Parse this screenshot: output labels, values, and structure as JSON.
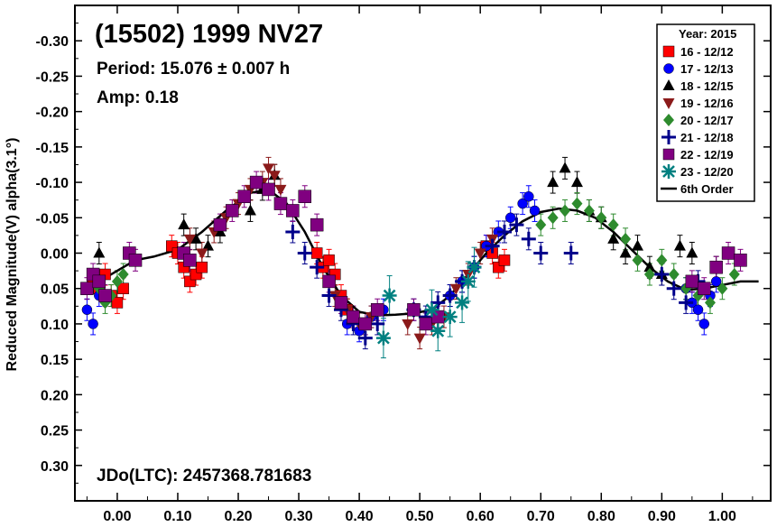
{
  "chart_data": {
    "type": "scatter",
    "title": "(15502) 1999 NV27",
    "period_text": "Period: 15.076 ± 0.007 h",
    "amp_text": "Amp: 0.18",
    "jdo_text": "JDo(LTC): 2457368.781683",
    "ylabel": "Reduced Magnitude(V) alpha(3.1°)",
    "xlabel": "",
    "xlim": [
      -0.07,
      1.08
    ],
    "ylim": [
      -0.35,
      0.35
    ],
    "y_inverted": true,
    "x_ticks": [
      "0.00",
      "0.10",
      "0.20",
      "0.30",
      "0.40",
      "0.50",
      "0.60",
      "0.70",
      "0.80",
      "0.90",
      "1.00"
    ],
    "y_ticks": [
      "-0.30",
      "-0.25",
      "-0.20",
      "-0.15",
      "-0.10",
      "-0.05",
      "0.00",
      "0.05",
      "0.10",
      "0.15",
      "0.20",
      "0.25",
      "0.30"
    ],
    "legend": {
      "title": "Year: 2015",
      "position": "top-right"
    },
    "series": [
      {
        "name": "16 - 12/12",
        "marker": "square",
        "color": "#ff0000",
        "points": [
          [
            -0.04,
            0.04
          ],
          [
            -0.03,
            0.05
          ],
          [
            -0.02,
            0.03
          ],
          [
            -0.01,
            0.06
          ],
          [
            0.0,
            0.07
          ],
          [
            0.01,
            0.05
          ],
          [
            0.09,
            -0.01
          ],
          [
            0.1,
            0.0
          ],
          [
            0.11,
            0.02
          ],
          [
            0.12,
            0.04
          ],
          [
            0.13,
            0.03
          ],
          [
            0.14,
            0.02
          ],
          [
            0.33,
            0.0
          ],
          [
            0.34,
            0.02
          ],
          [
            0.35,
            0.01
          ],
          [
            0.36,
            0.03
          ],
          [
            0.37,
            0.06
          ],
          [
            0.38,
            0.08
          ],
          [
            0.61,
            -0.01
          ],
          [
            0.62,
            0.0
          ],
          [
            0.63,
            0.02
          ],
          [
            0.64,
            0.01
          ]
        ]
      },
      {
        "name": "17 - 12/13",
        "marker": "circle",
        "color": "#0000ff",
        "points": [
          [
            -0.05,
            0.08
          ],
          [
            -0.04,
            0.1
          ],
          [
            -0.03,
            0.06
          ],
          [
            0.38,
            0.1
          ],
          [
            0.4,
            0.11
          ],
          [
            0.42,
            0.09
          ],
          [
            0.44,
            0.08
          ],
          [
            0.55,
            0.06
          ],
          [
            0.57,
            0.04
          ],
          [
            0.59,
            0.02
          ],
          [
            0.61,
            -0.01
          ],
          [
            0.63,
            -0.03
          ],
          [
            0.65,
            -0.05
          ],
          [
            0.67,
            -0.07
          ],
          [
            0.68,
            -0.08
          ],
          [
            0.69,
            -0.06
          ],
          [
            0.94,
            0.05
          ],
          [
            0.95,
            0.07
          ],
          [
            0.96,
            0.08
          ],
          [
            0.97,
            0.1
          ],
          [
            0.98,
            0.06
          ],
          [
            0.99,
            0.04
          ]
        ]
      },
      {
        "name": "18 - 12/15",
        "marker": "triangle-up",
        "color": "#000000",
        "points": [
          [
            -0.03,
            0.0
          ],
          [
            0.11,
            -0.04
          ],
          [
            0.13,
            -0.02
          ],
          [
            0.15,
            -0.01
          ],
          [
            0.17,
            -0.03
          ],
          [
            0.22,
            -0.06
          ],
          [
            0.24,
            -0.09
          ],
          [
            0.26,
            -0.11
          ],
          [
            0.72,
            -0.1
          ],
          [
            0.74,
            -0.12
          ],
          [
            0.76,
            -0.1
          ],
          [
            0.78,
            -0.06
          ],
          [
            0.8,
            -0.05
          ],
          [
            0.82,
            -0.02
          ],
          [
            0.84,
            0.0
          ],
          [
            0.86,
            -0.01
          ],
          [
            0.88,
            0.02
          ],
          [
            0.9,
            0.03
          ],
          [
            0.93,
            -0.01
          ],
          [
            0.95,
            0.0
          ],
          [
            0.99,
            0.02
          ]
        ]
      },
      {
        "name": "19 - 12/16",
        "marker": "triangle-down",
        "color": "#8b1a1a",
        "points": [
          [
            0.12,
            -0.02
          ],
          [
            0.14,
            0.0
          ],
          [
            0.16,
            -0.03
          ],
          [
            0.18,
            -0.05
          ],
          [
            0.2,
            -0.07
          ],
          [
            0.22,
            -0.09
          ],
          [
            0.24,
            -0.1
          ],
          [
            0.25,
            -0.12
          ],
          [
            0.26,
            -0.11
          ],
          [
            0.27,
            -0.09
          ],
          [
            0.36,
            0.06
          ],
          [
            0.38,
            0.08
          ],
          [
            0.4,
            0.1
          ],
          [
            0.42,
            0.09
          ],
          [
            0.48,
            0.1
          ],
          [
            0.5,
            0.12
          ],
          [
            0.52,
            0.1
          ],
          [
            0.54,
            0.09
          ],
          [
            0.56,
            0.05
          ],
          [
            0.58,
            0.03
          ],
          [
            0.6,
            0.0
          ],
          [
            0.62,
            -0.02
          ]
        ]
      },
      {
        "name": "20 - 12/17",
        "marker": "diamond",
        "color": "#2e8b2e",
        "points": [
          [
            -0.03,
            0.05
          ],
          [
            -0.02,
            0.07
          ],
          [
            -0.01,
            0.06
          ],
          [
            0.0,
            0.04
          ],
          [
            0.01,
            0.03
          ],
          [
            0.7,
            -0.04
          ],
          [
            0.72,
            -0.05
          ],
          [
            0.74,
            -0.06
          ],
          [
            0.76,
            -0.07
          ],
          [
            0.78,
            -0.06
          ],
          [
            0.8,
            -0.05
          ],
          [
            0.82,
            -0.04
          ],
          [
            0.84,
            -0.02
          ],
          [
            0.86,
            0.01
          ],
          [
            0.88,
            0.03
          ],
          [
            0.9,
            0.01
          ],
          [
            0.92,
            0.03
          ],
          [
            0.94,
            0.05
          ],
          [
            0.96,
            0.06
          ],
          [
            0.98,
            0.07
          ],
          [
            1.0,
            0.05
          ],
          [
            1.02,
            0.03
          ]
        ]
      },
      {
        "name": "21 - 12/18",
        "marker": "plus",
        "color": "#00008b",
        "points": [
          [
            0.29,
            -0.03
          ],
          [
            0.31,
            0.0
          ],
          [
            0.33,
            0.02
          ],
          [
            0.35,
            0.06
          ],
          [
            0.37,
            0.08
          ],
          [
            0.39,
            0.1
          ],
          [
            0.41,
            0.12
          ],
          [
            0.43,
            0.1
          ],
          [
            0.49,
            0.08
          ],
          [
            0.51,
            0.09
          ],
          [
            0.53,
            0.07
          ],
          [
            0.55,
            0.06
          ],
          [
            0.57,
            0.04
          ],
          [
            0.59,
            0.02
          ],
          [
            0.62,
            -0.01
          ],
          [
            0.64,
            -0.03
          ],
          [
            0.66,
            -0.04
          ],
          [
            0.68,
            -0.02
          ],
          [
            0.7,
            0.0
          ],
          [
            0.75,
            0.0
          ],
          [
            0.9,
            0.03
          ],
          [
            0.92,
            0.05
          ],
          [
            0.94,
            0.07
          ],
          [
            0.96,
            0.04
          ]
        ]
      },
      {
        "name": "22 - 12/19",
        "marker": "big-square",
        "color": "#800080",
        "points": [
          [
            -0.05,
            0.05
          ],
          [
            -0.04,
            0.03
          ],
          [
            -0.03,
            0.04
          ],
          [
            -0.02,
            0.06
          ],
          [
            0.02,
            0.0
          ],
          [
            0.03,
            0.01
          ],
          [
            0.11,
            0.0
          ],
          [
            0.12,
            0.01
          ],
          [
            0.17,
            -0.04
          ],
          [
            0.19,
            -0.06
          ],
          [
            0.21,
            -0.08
          ],
          [
            0.23,
            -0.1
          ],
          [
            0.25,
            -0.09
          ],
          [
            0.27,
            -0.07
          ],
          [
            0.29,
            -0.06
          ],
          [
            0.31,
            -0.08
          ],
          [
            0.33,
            -0.04
          ],
          [
            0.35,
            0.04
          ],
          [
            0.37,
            0.07
          ],
          [
            0.39,
            0.09
          ],
          [
            0.41,
            0.1
          ],
          [
            0.43,
            0.08
          ],
          [
            0.49,
            0.08
          ],
          [
            0.51,
            0.1
          ],
          [
            0.53,
            0.09
          ],
          [
            0.95,
            0.04
          ],
          [
            0.97,
            0.05
          ],
          [
            0.99,
            0.02
          ],
          [
            1.01,
            0.0
          ],
          [
            1.03,
            0.01
          ]
        ]
      },
      {
        "name": "23 - 12/20",
        "marker": "asterisk",
        "color": "#008080",
        "points": [
          [
            0.44,
            0.12
          ],
          [
            0.45,
            0.06
          ],
          [
            0.52,
            0.08
          ],
          [
            0.53,
            0.11
          ],
          [
            0.55,
            0.09
          ],
          [
            0.57,
            0.07
          ],
          [
            0.58,
            0.04
          ],
          [
            0.59,
            0.02
          ]
        ]
      },
      {
        "name": "6th Order",
        "marker": "line",
        "color": "#000000",
        "points": [
          [
            -0.06,
            0.045
          ],
          [
            -0.03,
            0.04
          ],
          [
            0.0,
            0.025
          ],
          [
            0.03,
            0.01
          ],
          [
            0.06,
            0.005
          ],
          [
            0.1,
            -0.005
          ],
          [
            0.14,
            -0.03
          ],
          [
            0.18,
            -0.06
          ],
          [
            0.22,
            -0.085
          ],
          [
            0.25,
            -0.09
          ],
          [
            0.28,
            -0.07
          ],
          [
            0.31,
            -0.03
          ],
          [
            0.34,
            0.02
          ],
          [
            0.37,
            0.06
          ],
          [
            0.4,
            0.083
          ],
          [
            0.43,
            0.088
          ],
          [
            0.46,
            0.087
          ],
          [
            0.49,
            0.085
          ],
          [
            0.52,
            0.08
          ],
          [
            0.55,
            0.06
          ],
          [
            0.58,
            0.03
          ],
          [
            0.61,
            0.0
          ],
          [
            0.64,
            -0.025
          ],
          [
            0.67,
            -0.045
          ],
          [
            0.7,
            -0.058
          ],
          [
            0.73,
            -0.063
          ],
          [
            0.76,
            -0.06
          ],
          [
            0.79,
            -0.05
          ],
          [
            0.82,
            -0.03
          ],
          [
            0.85,
            -0.005
          ],
          [
            0.88,
            0.02
          ],
          [
            0.91,
            0.04
          ],
          [
            0.94,
            0.052
          ],
          [
            0.97,
            0.05
          ],
          [
            1.0,
            0.045
          ],
          [
            1.03,
            0.04
          ],
          [
            1.06,
            0.04
          ]
        ]
      }
    ]
  }
}
